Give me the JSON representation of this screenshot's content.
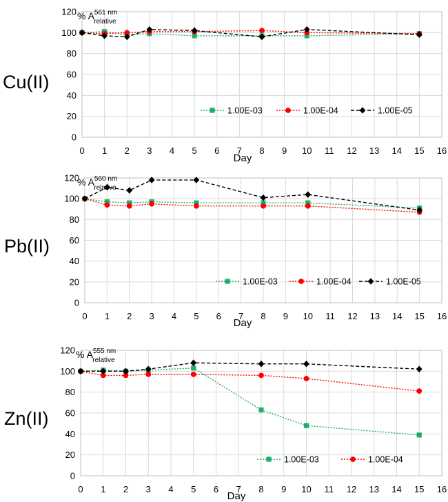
{
  "chart_data": [
    {
      "type": "line",
      "metal_label": "Cu(II)",
      "ylabel": {
        "prefix": "% A",
        "superscript": "561 nm",
        "subscript": "relative"
      },
      "xlabel": "Day",
      "xlim": [
        0,
        16
      ],
      "ylim": [
        0,
        120
      ],
      "xticks": [
        0,
        1,
        2,
        3,
        4,
        5,
        6,
        7,
        8,
        9,
        10,
        11,
        12,
        13,
        14,
        15,
        16
      ],
      "yticks": [
        0,
        20,
        40,
        60,
        80,
        100,
        120
      ],
      "grid": true,
      "legend_position": "bottom-center",
      "series": [
        {
          "name": "1.00E-03",
          "color": "#1fad6a",
          "marker": "square",
          "line": "dotted",
          "x": [
            0,
            1,
            2,
            3,
            5,
            8,
            10,
            15
          ],
          "y": [
            100,
            101,
            98,
            99,
            97,
            97,
            97,
            99
          ]
        },
        {
          "name": "1.00E-04",
          "color": "#ff0000",
          "marker": "circle",
          "line": "dotted",
          "x": [
            0,
            1,
            2,
            3,
            5,
            8,
            10,
            15
          ],
          "y": [
            100,
            99,
            100,
            101,
            101,
            102,
            100,
            99
          ]
        },
        {
          "name": "1.00E-05",
          "color": "#000000",
          "marker": "diamond",
          "line": "dashed",
          "x": [
            0,
            1,
            2,
            3,
            5,
            8,
            10,
            15
          ],
          "y": [
            100,
            97,
            96,
            103,
            102,
            96,
            103,
            98
          ]
        }
      ]
    },
    {
      "type": "line",
      "metal_label": "Pb(II)",
      "ylabel": {
        "prefix": "% A",
        "superscript": "560 nm",
        "subscript": "relative"
      },
      "xlabel": "Day",
      "xlim": [
        0,
        16
      ],
      "ylim": [
        0,
        120
      ],
      "xticks": [
        0,
        1,
        2,
        3,
        4,
        5,
        6,
        7,
        8,
        9,
        10,
        11,
        12,
        13,
        14,
        15,
        16
      ],
      "yticks": [
        0,
        20,
        40,
        60,
        80,
        100,
        120
      ],
      "grid": true,
      "legend_position": "bottom-right",
      "series": [
        {
          "name": "1.00E-03",
          "color": "#1fad6a",
          "marker": "square",
          "line": "dotted",
          "x": [
            0,
            1,
            2,
            3,
            5,
            8,
            10,
            15
          ],
          "y": [
            100,
            97,
            96,
            97,
            96,
            96,
            96,
            91
          ]
        },
        {
          "name": "1.00E-04",
          "color": "#ff0000",
          "marker": "circle",
          "line": "dotted",
          "x": [
            0,
            1,
            2,
            3,
            5,
            8,
            10,
            15
          ],
          "y": [
            100,
            94,
            93,
            95,
            93,
            93,
            93,
            87
          ]
        },
        {
          "name": "1.00E-05",
          "color": "#000000",
          "marker": "diamond",
          "line": "dashed",
          "x": [
            0,
            1,
            2,
            3,
            5,
            8,
            10,
            15
          ],
          "y": [
            100,
            111,
            108,
            118,
            118,
            101,
            104,
            89
          ]
        }
      ]
    },
    {
      "type": "line",
      "metal_label": "Zn(II)",
      "ylabel": {
        "prefix": "% A",
        "superscript": "555 nm",
        "subscript": "relative"
      },
      "xlabel": "Day",
      "xlim": [
        0,
        16
      ],
      "ylim": [
        0,
        120
      ],
      "xticks": [
        0,
        1,
        2,
        3,
        4,
        5,
        6,
        7,
        8,
        9,
        10,
        11,
        12,
        13,
        14,
        15,
        16
      ],
      "yticks": [
        0,
        20,
        40,
        60,
        80,
        100,
        120
      ],
      "grid": true,
      "legend_position": "bottom-right",
      "series": [
        {
          "name": "1.00E-03",
          "color": "#1fad6a",
          "marker": "square",
          "line": "dotted",
          "x": [
            0,
            1,
            2,
            3,
            5,
            8,
            10,
            15
          ],
          "y": [
            100,
            101,
            100,
            101,
            103,
            63,
            48,
            39
          ]
        },
        {
          "name": "1.00E-04",
          "color": "#ff0000",
          "marker": "circle",
          "line": "dotted",
          "x": [
            0,
            1,
            2,
            3,
            5,
            8,
            10,
            15
          ],
          "y": [
            100,
            96,
            96,
            97,
            97,
            96,
            93,
            81
          ]
        },
        {
          "name": "",
          "color": "#000000",
          "marker": "diamond",
          "line": "dashed",
          "x": [
            0,
            1,
            2,
            3,
            5,
            8,
            10,
            15
          ],
          "y": [
            100,
            100,
            100,
            102,
            108,
            107,
            107,
            102
          ]
        }
      ]
    }
  ]
}
